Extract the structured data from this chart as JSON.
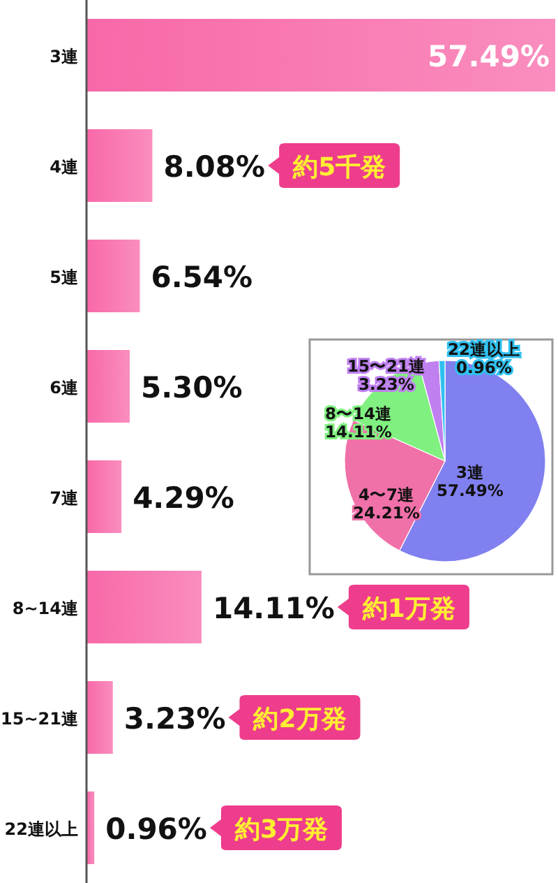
{
  "chart_data": [
    {
      "type": "bar",
      "orientation": "horizontal",
      "color": "#f868a8",
      "categories": [
        "3連",
        "4連",
        "5連",
        "6連",
        "7連",
        "8~14連",
        "15~21連",
        "22連以上"
      ],
      "values": [
        57.49,
        8.08,
        6.54,
        5.3,
        4.29,
        14.11,
        3.23,
        0.96
      ],
      "value_labels": [
        "57.49%",
        "8.08%",
        "6.54%",
        "5.30%",
        "4.29%",
        "14.11%",
        "3.23%",
        "0.96%"
      ],
      "annotations": [
        "約5千発",
        "約1万発",
        "約2万発",
        "約3万発"
      ]
    },
    {
      "type": "pie",
      "categories": [
        "3連",
        "4〜7連",
        "8〜14連",
        "15〜21連",
        "22連以上"
      ],
      "values": [
        57.49,
        24.21,
        14.11,
        3.23,
        0.96
      ],
      "value_labels": [
        "57.49%",
        "24.21%",
        "14.11%",
        "3.23%",
        "0.96%"
      ],
      "colors": [
        "#8080f0",
        "#f070a8",
        "#80f080",
        "#c080f0",
        "#30c0f0"
      ]
    }
  ]
}
